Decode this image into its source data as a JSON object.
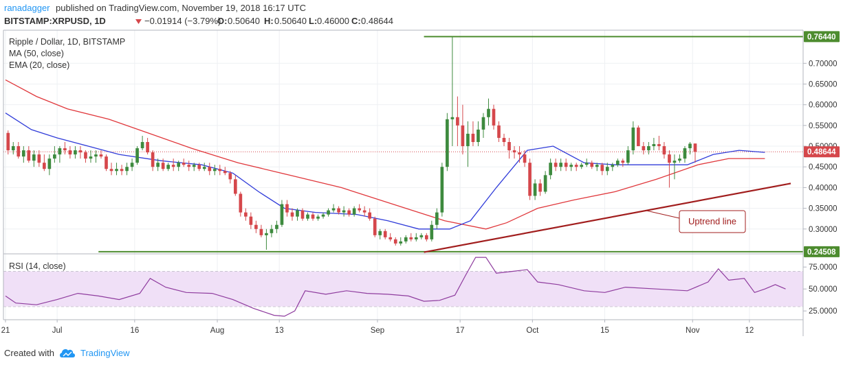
{
  "header": {
    "author": "ranadagger",
    "published_text": " published on TradingView.com, November 19, 2018 16:17 UTC",
    "symbol": "BITSTAMP:XRPUSD, 1D",
    "change": "−0.01914 (−3.79%)",
    "o_label": "O:",
    "o_value": "0.50640",
    "h_label": "H:",
    "h_value": "0.50640",
    "l_label": "L:",
    "l_value": "0.46000",
    "c_label": "C:",
    "c_value": "0.48644"
  },
  "legend": {
    "title": "Ripple / Dollar, 1D, BITSTAMP",
    "ma": "MA (50, close)",
    "ema": "EMA (20, close)",
    "rsi": "RSI (14, close)"
  },
  "annotation": {
    "uptrend": "Uptrend line"
  },
  "footer": {
    "created_with": "Created with",
    "brand": "TradingView"
  },
  "colors": {
    "up": "#3d8a3e",
    "down": "#d5474b",
    "ma": "#e0373b",
    "ema": "#2f3bd9",
    "rsi": "#8e3b9e",
    "rsi_band": "#f0e0f7",
    "hline": "#4d8c2f",
    "trend": "#a11d1d",
    "last_price_bg": "#d5474b",
    "brand": "#2196f3"
  },
  "chart_data": {
    "type": "candlestick",
    "price_ticks": [
      "0.70000",
      "0.65000",
      "0.60000",
      "0.55000",
      "0.50000",
      "0.45000",
      "0.40000",
      "0.35000",
      "0.30000"
    ],
    "price_range": [
      0.24,
      0.78
    ],
    "level_labels": {
      "top": "0.76440",
      "bottom": "0.24508",
      "last": "0.48644"
    },
    "levels": {
      "top": 0.7644,
      "bottom": 0.24508,
      "last": 0.48644
    },
    "date_labels": [
      {
        "label": "21",
        "day": 0
      },
      {
        "label": "Jul",
        "day": 10
      },
      {
        "label": "16",
        "day": 25
      },
      {
        "label": "Aug",
        "day": 41
      },
      {
        "label": "13",
        "day": 53
      },
      {
        "label": "Sep",
        "day": 72
      },
      {
        "label": "17",
        "day": 88
      },
      {
        "label": "Oct",
        "day": 102
      },
      {
        "label": "15",
        "day": 116
      },
      {
        "label": "Nov",
        "day": 133
      },
      {
        "label": "12",
        "day": 144
      }
    ],
    "days_total": 152,
    "ohlc": [
      [
        0.532,
        0.538,
        0.48,
        0.49
      ],
      [
        0.49,
        0.51,
        0.48,
        0.5
      ],
      [
        0.5,
        0.51,
        0.47,
        0.475
      ],
      [
        0.475,
        0.5,
        0.46,
        0.49
      ],
      [
        0.49,
        0.5,
        0.46,
        0.465
      ],
      [
        0.465,
        0.49,
        0.45,
        0.48
      ],
      [
        0.48,
        0.49,
        0.45,
        0.46
      ],
      [
        0.46,
        0.48,
        0.44,
        0.445
      ],
      [
        0.445,
        0.48,
        0.43,
        0.47
      ],
      [
        0.47,
        0.5,
        0.46,
        0.48
      ],
      [
        0.48,
        0.5,
        0.46,
        0.495
      ],
      [
        0.495,
        0.51,
        0.48,
        0.49
      ],
      [
        0.49,
        0.5,
        0.47,
        0.48
      ],
      [
        0.48,
        0.5,
        0.47,
        0.49
      ],
      [
        0.49,
        0.5,
        0.47,
        0.485
      ],
      [
        0.485,
        0.49,
        0.46,
        0.47
      ],
      [
        0.47,
        0.49,
        0.46,
        0.475
      ],
      [
        0.475,
        0.49,
        0.46,
        0.48
      ],
      [
        0.48,
        0.49,
        0.47,
        0.475
      ],
      [
        0.475,
        0.48,
        0.44,
        0.445
      ],
      [
        0.445,
        0.46,
        0.43,
        0.44
      ],
      [
        0.44,
        0.46,
        0.43,
        0.445
      ],
      [
        0.445,
        0.455,
        0.43,
        0.44
      ],
      [
        0.44,
        0.46,
        0.43,
        0.45
      ],
      [
        0.45,
        0.47,
        0.44,
        0.46
      ],
      [
        0.46,
        0.5,
        0.455,
        0.495
      ],
      [
        0.495,
        0.525,
        0.49,
        0.51
      ],
      [
        0.51,
        0.52,
        0.48,
        0.485
      ],
      [
        0.485,
        0.49,
        0.44,
        0.45
      ],
      [
        0.45,
        0.47,
        0.44,
        0.46
      ],
      [
        0.46,
        0.47,
        0.44,
        0.445
      ],
      [
        0.445,
        0.46,
        0.44,
        0.455
      ],
      [
        0.455,
        0.47,
        0.44,
        0.45
      ],
      [
        0.45,
        0.465,
        0.44,
        0.46
      ],
      [
        0.46,
        0.47,
        0.45,
        0.455
      ],
      [
        0.455,
        0.465,
        0.44,
        0.45
      ],
      [
        0.45,
        0.46,
        0.44,
        0.455
      ],
      [
        0.455,
        0.46,
        0.44,
        0.445
      ],
      [
        0.445,
        0.46,
        0.44,
        0.45
      ],
      [
        0.45,
        0.46,
        0.43,
        0.44
      ],
      [
        0.44,
        0.455,
        0.43,
        0.445
      ],
      [
        0.445,
        0.455,
        0.43,
        0.44
      ],
      [
        0.44,
        0.45,
        0.43,
        0.435
      ],
      [
        0.435,
        0.44,
        0.41,
        0.42
      ],
      [
        0.42,
        0.43,
        0.38,
        0.385
      ],
      [
        0.385,
        0.39,
        0.33,
        0.34
      ],
      [
        0.34,
        0.35,
        0.32,
        0.33
      ],
      [
        0.33,
        0.34,
        0.3,
        0.31
      ],
      [
        0.31,
        0.32,
        0.29,
        0.3
      ],
      [
        0.3,
        0.31,
        0.28,
        0.285
      ],
      [
        0.285,
        0.3,
        0.25,
        0.29
      ],
      [
        0.29,
        0.31,
        0.28,
        0.3
      ],
      [
        0.3,
        0.32,
        0.29,
        0.31
      ],
      [
        0.31,
        0.37,
        0.305,
        0.36
      ],
      [
        0.36,
        0.37,
        0.33,
        0.34
      ],
      [
        0.34,
        0.35,
        0.32,
        0.33
      ],
      [
        0.33,
        0.35,
        0.32,
        0.345
      ],
      [
        0.345,
        0.35,
        0.32,
        0.325
      ],
      [
        0.325,
        0.34,
        0.32,
        0.335
      ],
      [
        0.335,
        0.34,
        0.32,
        0.325
      ],
      [
        0.325,
        0.335,
        0.32,
        0.33
      ],
      [
        0.33,
        0.34,
        0.325,
        0.335
      ],
      [
        0.335,
        0.35,
        0.33,
        0.345
      ],
      [
        0.345,
        0.36,
        0.34,
        0.35
      ],
      [
        0.35,
        0.355,
        0.335,
        0.34
      ],
      [
        0.34,
        0.355,
        0.33,
        0.345
      ],
      [
        0.345,
        0.35,
        0.33,
        0.335
      ],
      [
        0.335,
        0.355,
        0.33,
        0.35
      ],
      [
        0.35,
        0.36,
        0.34,
        0.345
      ],
      [
        0.345,
        0.355,
        0.33,
        0.34
      ],
      [
        0.34,
        0.35,
        0.32,
        0.325
      ],
      [
        0.325,
        0.33,
        0.28,
        0.285
      ],
      [
        0.285,
        0.3,
        0.275,
        0.295
      ],
      [
        0.295,
        0.3,
        0.275,
        0.28
      ],
      [
        0.28,
        0.29,
        0.27,
        0.275
      ],
      [
        0.275,
        0.28,
        0.26,
        0.265
      ],
      [
        0.265,
        0.28,
        0.26,
        0.27
      ],
      [
        0.27,
        0.285,
        0.265,
        0.28
      ],
      [
        0.28,
        0.29,
        0.27,
        0.275
      ],
      [
        0.275,
        0.29,
        0.27,
        0.28
      ],
      [
        0.28,
        0.29,
        0.275,
        0.285
      ],
      [
        0.285,
        0.29,
        0.27,
        0.275
      ],
      [
        0.275,
        0.32,
        0.27,
        0.31
      ],
      [
        0.31,
        0.35,
        0.3,
        0.34
      ],
      [
        0.34,
        0.46,
        0.33,
        0.45
      ],
      [
        0.45,
        0.58,
        0.44,
        0.565
      ],
      [
        0.565,
        0.7644,
        0.5,
        0.57
      ],
      [
        0.57,
        0.62,
        0.5,
        0.55
      ],
      [
        0.55,
        0.6,
        0.48,
        0.5
      ],
      [
        0.5,
        0.56,
        0.45,
        0.53
      ],
      [
        0.53,
        0.56,
        0.5,
        0.51
      ],
      [
        0.51,
        0.56,
        0.5,
        0.54
      ],
      [
        0.54,
        0.58,
        0.52,
        0.57
      ],
      [
        0.57,
        0.615,
        0.55,
        0.59
      ],
      [
        0.59,
        0.6,
        0.54,
        0.55
      ],
      [
        0.55,
        0.56,
        0.51,
        0.52
      ],
      [
        0.52,
        0.53,
        0.5,
        0.51
      ],
      [
        0.51,
        0.52,
        0.47,
        0.49
      ],
      [
        0.49,
        0.5,
        0.47,
        0.485
      ],
      [
        0.485,
        0.5,
        0.46,
        0.48
      ],
      [
        0.48,
        0.49,
        0.45,
        0.46
      ],
      [
        0.46,
        0.47,
        0.37,
        0.38
      ],
      [
        0.38,
        0.42,
        0.37,
        0.41
      ],
      [
        0.41,
        0.42,
        0.38,
        0.39
      ],
      [
        0.39,
        0.44,
        0.385,
        0.43
      ],
      [
        0.43,
        0.47,
        0.42,
        0.46
      ],
      [
        0.46,
        0.47,
        0.44,
        0.45
      ],
      [
        0.45,
        0.47,
        0.44,
        0.46
      ],
      [
        0.46,
        0.47,
        0.44,
        0.45
      ],
      [
        0.45,
        0.46,
        0.44,
        0.455
      ],
      [
        0.455,
        0.46,
        0.44,
        0.45
      ],
      [
        0.45,
        0.46,
        0.445,
        0.455
      ],
      [
        0.455,
        0.47,
        0.45,
        0.46
      ],
      [
        0.46,
        0.465,
        0.445,
        0.45
      ],
      [
        0.45,
        0.46,
        0.44,
        0.455
      ],
      [
        0.455,
        0.46,
        0.43,
        0.44
      ],
      [
        0.44,
        0.46,
        0.43,
        0.45
      ],
      [
        0.45,
        0.46,
        0.44,
        0.455
      ],
      [
        0.455,
        0.47,
        0.45,
        0.465
      ],
      [
        0.465,
        0.47,
        0.45,
        0.46
      ],
      [
        0.46,
        0.5,
        0.455,
        0.49
      ],
      [
        0.49,
        0.56,
        0.48,
        0.545
      ],
      [
        0.545,
        0.55,
        0.5,
        0.5
      ],
      [
        0.5,
        0.51,
        0.48,
        0.49
      ],
      [
        0.49,
        0.51,
        0.48,
        0.5
      ],
      [
        0.5,
        0.52,
        0.49,
        0.505
      ],
      [
        0.505,
        0.525,
        0.49,
        0.5
      ],
      [
        0.5,
        0.51,
        0.47,
        0.48
      ],
      [
        0.48,
        0.49,
        0.4,
        0.46
      ],
      [
        0.46,
        0.48,
        0.42,
        0.465
      ],
      [
        0.465,
        0.48,
        0.46,
        0.47
      ],
      [
        0.47,
        0.5,
        0.46,
        0.495
      ],
      [
        0.495,
        0.51,
        0.48,
        0.506
      ],
      [
        0.5064,
        0.5064,
        0.46,
        0.48644
      ]
    ],
    "ma_points": [
      [
        0,
        0.66
      ],
      [
        6,
        0.62
      ],
      [
        12,
        0.59
      ],
      [
        20,
        0.565
      ],
      [
        28,
        0.53
      ],
      [
        36,
        0.495
      ],
      [
        45,
        0.46
      ],
      [
        55,
        0.43
      ],
      [
        65,
        0.4
      ],
      [
        75,
        0.36
      ],
      [
        85,
        0.32
      ],
      [
        93,
        0.3
      ],
      [
        97,
        0.315
      ],
      [
        103,
        0.35
      ],
      [
        110,
        0.37
      ],
      [
        118,
        0.39
      ],
      [
        126,
        0.42
      ],
      [
        134,
        0.455
      ],
      [
        140,
        0.47
      ],
      [
        147,
        0.47
      ]
    ],
    "ema_points": [
      [
        0,
        0.58
      ],
      [
        5,
        0.54
      ],
      [
        10,
        0.52
      ],
      [
        16,
        0.5
      ],
      [
        22,
        0.48
      ],
      [
        30,
        0.465
      ],
      [
        38,
        0.455
      ],
      [
        44,
        0.435
      ],
      [
        49,
        0.39
      ],
      [
        54,
        0.35
      ],
      [
        60,
        0.34
      ],
      [
        68,
        0.335
      ],
      [
        74,
        0.32
      ],
      [
        80,
        0.3
      ],
      [
        86,
        0.3
      ],
      [
        90,
        0.32
      ],
      [
        95,
        0.4
      ],
      [
        101,
        0.49
      ],
      [
        106,
        0.5
      ],
      [
        112,
        0.46
      ],
      [
        118,
        0.455
      ],
      [
        125,
        0.455
      ],
      [
        132,
        0.455
      ],
      [
        137,
        0.48
      ],
      [
        142,
        0.49
      ],
      [
        147,
        0.485
      ]
    ],
    "trend_line": {
      "from": [
        81,
        0.244
      ],
      "to": [
        152,
        0.41
      ]
    },
    "rsi_ticks": [
      "75.0000",
      "50.0000",
      "25.0000"
    ],
    "rsi_band": [
      30,
      70
    ],
    "rsi_range": [
      15,
      90
    ],
    "rsi_points": [
      [
        0,
        42
      ],
      [
        2,
        34
      ],
      [
        6,
        32
      ],
      [
        10,
        38
      ],
      [
        14,
        45
      ],
      [
        18,
        42
      ],
      [
        22,
        38
      ],
      [
        26,
        45
      ],
      [
        28,
        62
      ],
      [
        31,
        52
      ],
      [
        35,
        46
      ],
      [
        40,
        45
      ],
      [
        44,
        38
      ],
      [
        48,
        28
      ],
      [
        52,
        20
      ],
      [
        54,
        19
      ],
      [
        56,
        25
      ],
      [
        58,
        48
      ],
      [
        62,
        44
      ],
      [
        66,
        48
      ],
      [
        70,
        45
      ],
      [
        74,
        44
      ],
      [
        78,
        42
      ],
      [
        81,
        36
      ],
      [
        84,
        37
      ],
      [
        87,
        43
      ],
      [
        89,
        65
      ],
      [
        91,
        86
      ],
      [
        93,
        86
      ],
      [
        95,
        68
      ],
      [
        98,
        70
      ],
      [
        101,
        72
      ],
      [
        103,
        58
      ],
      [
        107,
        55
      ],
      [
        112,
        48
      ],
      [
        116,
        46
      ],
      [
        120,
        52
      ],
      [
        126,
        50
      ],
      [
        132,
        48
      ],
      [
        136,
        58
      ],
      [
        138,
        73
      ],
      [
        140,
        60
      ],
      [
        143,
        62
      ],
      [
        145,
        46
      ],
      [
        147,
        50
      ],
      [
        149,
        55
      ],
      [
        151,
        50
      ]
    ]
  }
}
